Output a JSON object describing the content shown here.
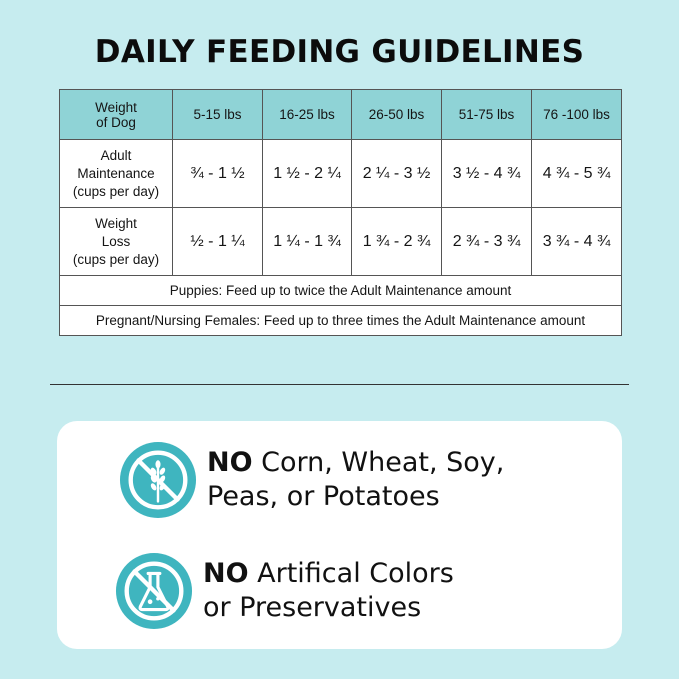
{
  "title": "DAILY FEEDING GUIDELINES",
  "table": {
    "header_label": [
      "Weight",
      "of Dog"
    ],
    "columns": [
      "5-15 lbs",
      "16-25 lbs",
      "26-50 lbs",
      "51-75 lbs",
      "76 -100 lbs"
    ],
    "rows": [
      {
        "label": [
          "Adult",
          "Maintenance",
          "(cups per day)"
        ],
        "values": [
          "¾ - 1 ½",
          "1 ½ - 2 ¼",
          "2 ¼ - 3 ½",
          "3 ½ - 4 ¾",
          "4 ¾ - 5 ¾"
        ]
      },
      {
        "label": [
          "Weight",
          "Loss",
          "(cups per day)"
        ],
        "values": [
          "½ - 1 ¼",
          "1 ¼ - 1 ¾",
          "1 ¾ - 2 ¾",
          "2 ¾ - 3 ¾",
          "3 ¾ - 4 ¾"
        ]
      }
    ],
    "notes": [
      "Puppies: Feed up to twice the Adult Maintenance amount",
      "Pregnant/Nursing Females: Feed up to three times the Adult Maintenance amount"
    ]
  },
  "features": [
    {
      "icon": "no-grain-icon",
      "bold": "NO",
      "line1": " Corn, Wheat, Soy,",
      "line2": "Peas, or Potatoes"
    },
    {
      "icon": "no-chemical-flask-icon",
      "bold": "NO",
      "line1": " Artifical Colors",
      "line2": "or Preservatives"
    }
  ],
  "colors": {
    "background": "#c6ecef",
    "table_header": "#8fd3d6",
    "icon_teal": "#3fb5bf",
    "panel": "#ffffff"
  }
}
